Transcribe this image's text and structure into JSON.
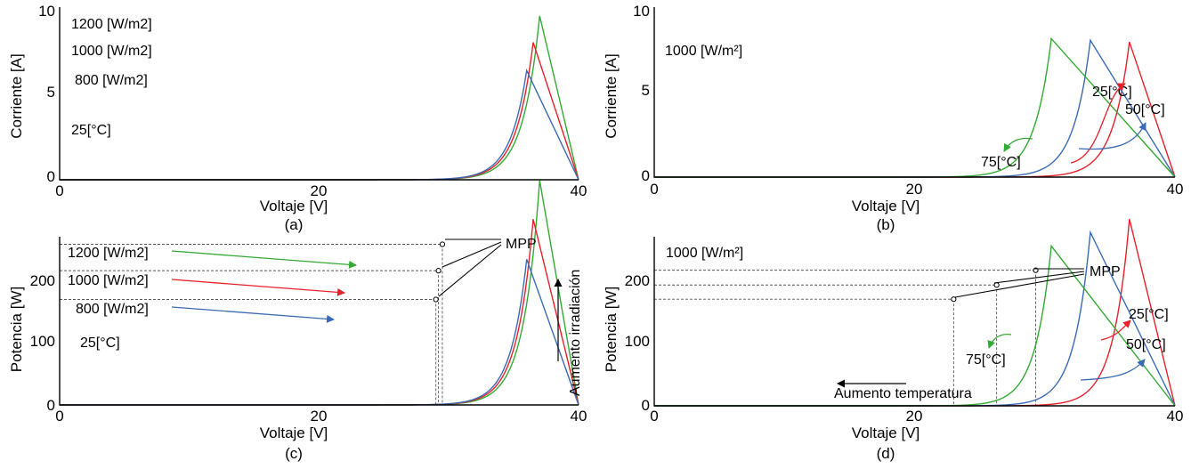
{
  "colors": {
    "green": "#33aa33",
    "red": "#e8202a",
    "blue": "#3a6ab5",
    "axis": "#000000",
    "grid": "#555555"
  },
  "chart_data": [
    {
      "id": "a",
      "type": "line",
      "caption": "(a)",
      "xlabel": "Voltaje [V]",
      "ylabel": "Corriente [A]",
      "xlim": [
        0,
        40
      ],
      "ylim": [
        0,
        10
      ],
      "xticks": [
        "0",
        "20",
        "40"
      ],
      "yticks": [
        "0",
        "5",
        "10"
      ],
      "series": [
        {
          "name": "1200 [W/m2]",
          "color": "green",
          "isc": 9.9,
          "voc": 37.0,
          "k": 1.3
        },
        {
          "name": "1000 [W/m2]",
          "color": "red",
          "isc": 8.3,
          "voc": 36.5,
          "k": 1.3
        },
        {
          "name": "800 [W/m2]",
          "color": "blue",
          "isc": 6.6,
          "voc": 36.0,
          "k": 1.3
        }
      ],
      "annotations": [
        "25[°C]"
      ]
    },
    {
      "id": "b",
      "type": "line",
      "caption": "(b)",
      "xlabel": "Voltaje [V]",
      "ylabel": "Corriente [A]",
      "xlim": [
        0,
        40
      ],
      "ylim": [
        0,
        10
      ],
      "xticks": [
        "0",
        "20",
        "40"
      ],
      "yticks": [
        "0",
        "5",
        "10"
      ],
      "series": [
        {
          "name": "25[°C]",
          "color": "red",
          "isc": 8.3,
          "voc": 36.5,
          "k": 1.3
        },
        {
          "name": "50[°C]",
          "color": "blue",
          "isc": 8.4,
          "voc": 33.5,
          "k": 1.3
        },
        {
          "name": "75[°C]",
          "color": "green",
          "isc": 8.5,
          "voc": 30.5,
          "k": 1.3
        }
      ],
      "annotations": [
        "1000 [W/m²]"
      ]
    },
    {
      "id": "c",
      "type": "line",
      "caption": "(c)",
      "xlabel": "Voltaje [V]",
      "ylabel": "Potencia [W]",
      "xlim": [
        0,
        40
      ],
      "ylim": [
        0,
        270
      ],
      "xticks": [
        "0",
        "20",
        "40"
      ],
      "yticks": [
        "0",
        "100",
        "200"
      ],
      "ytick_values": [
        0,
        100,
        200
      ],
      "series": [
        {
          "name": "1200 [W/m2]",
          "color": "green",
          "isc": 9.9,
          "voc": 37.0,
          "k": 1.3
        },
        {
          "name": "1000 [W/m2]",
          "color": "red",
          "isc": 8.3,
          "voc": 36.5,
          "k": 1.3
        },
        {
          "name": "800 [W/m2]",
          "color": "blue",
          "isc": 6.6,
          "voc": 36.0,
          "k": 1.3
        }
      ],
      "mpp": [
        {
          "v": 29.5,
          "p": 262
        },
        {
          "v": 29.2,
          "p": 219
        },
        {
          "v": 29.0,
          "p": 172
        }
      ],
      "annotations": [
        "MPP",
        "25[°C]",
        "Aumento irradiación"
      ]
    },
    {
      "id": "d",
      "type": "line",
      "caption": "(d)",
      "xlabel": "Voltaje [V]",
      "ylabel": "Potencia [W]",
      "xlim": [
        0,
        40
      ],
      "ylim": [
        0,
        270
      ],
      "xticks": [
        "0",
        "20",
        "40"
      ],
      "yticks": [
        "0",
        "100",
        "200"
      ],
      "ytick_values": [
        0,
        100,
        200
      ],
      "series": [
        {
          "name": "25[°C]",
          "color": "red",
          "isc": 8.3,
          "voc": 36.5,
          "k": 1.3
        },
        {
          "name": "50[°C]",
          "color": "blue",
          "isc": 8.4,
          "voc": 33.5,
          "k": 1.3
        },
        {
          "name": "75[°C]",
          "color": "green",
          "isc": 8.5,
          "voc": 30.5,
          "k": 1.3
        }
      ],
      "mpp": [
        {
          "v": 29.3,
          "p": 220
        },
        {
          "v": 26.3,
          "p": 196
        },
        {
          "v": 23.0,
          "p": 173
        }
      ],
      "annotations": [
        "1000 [W/m²]",
        "MPP",
        "Aumento temperatura"
      ]
    }
  ],
  "labels": {
    "a_1200": "1200 [W/m2]",
    "a_1000": "1000 [W/m2]",
    "a_800": "800 [W/m2]",
    "a_temp": "25[°C]",
    "b_irr": "1000 [W/m²]",
    "b_25": "25[°C]",
    "b_50": "50[°C]",
    "b_75": "75[°C]",
    "c_1200": "1200 [W/m2]",
    "c_1000": "1000 [W/m2]",
    "c_800": "800 [W/m2]",
    "c_temp": "25[°C]",
    "c_mpp": "MPP",
    "c_arrow": "Aumento irradiación",
    "d_irr": "1000 [W/m²]",
    "d_mpp": "MPP",
    "d_25": "25[°C]",
    "d_50": "50[°C]",
    "d_75": "75[°C]",
    "d_arrow": "Aumento temperatura"
  }
}
